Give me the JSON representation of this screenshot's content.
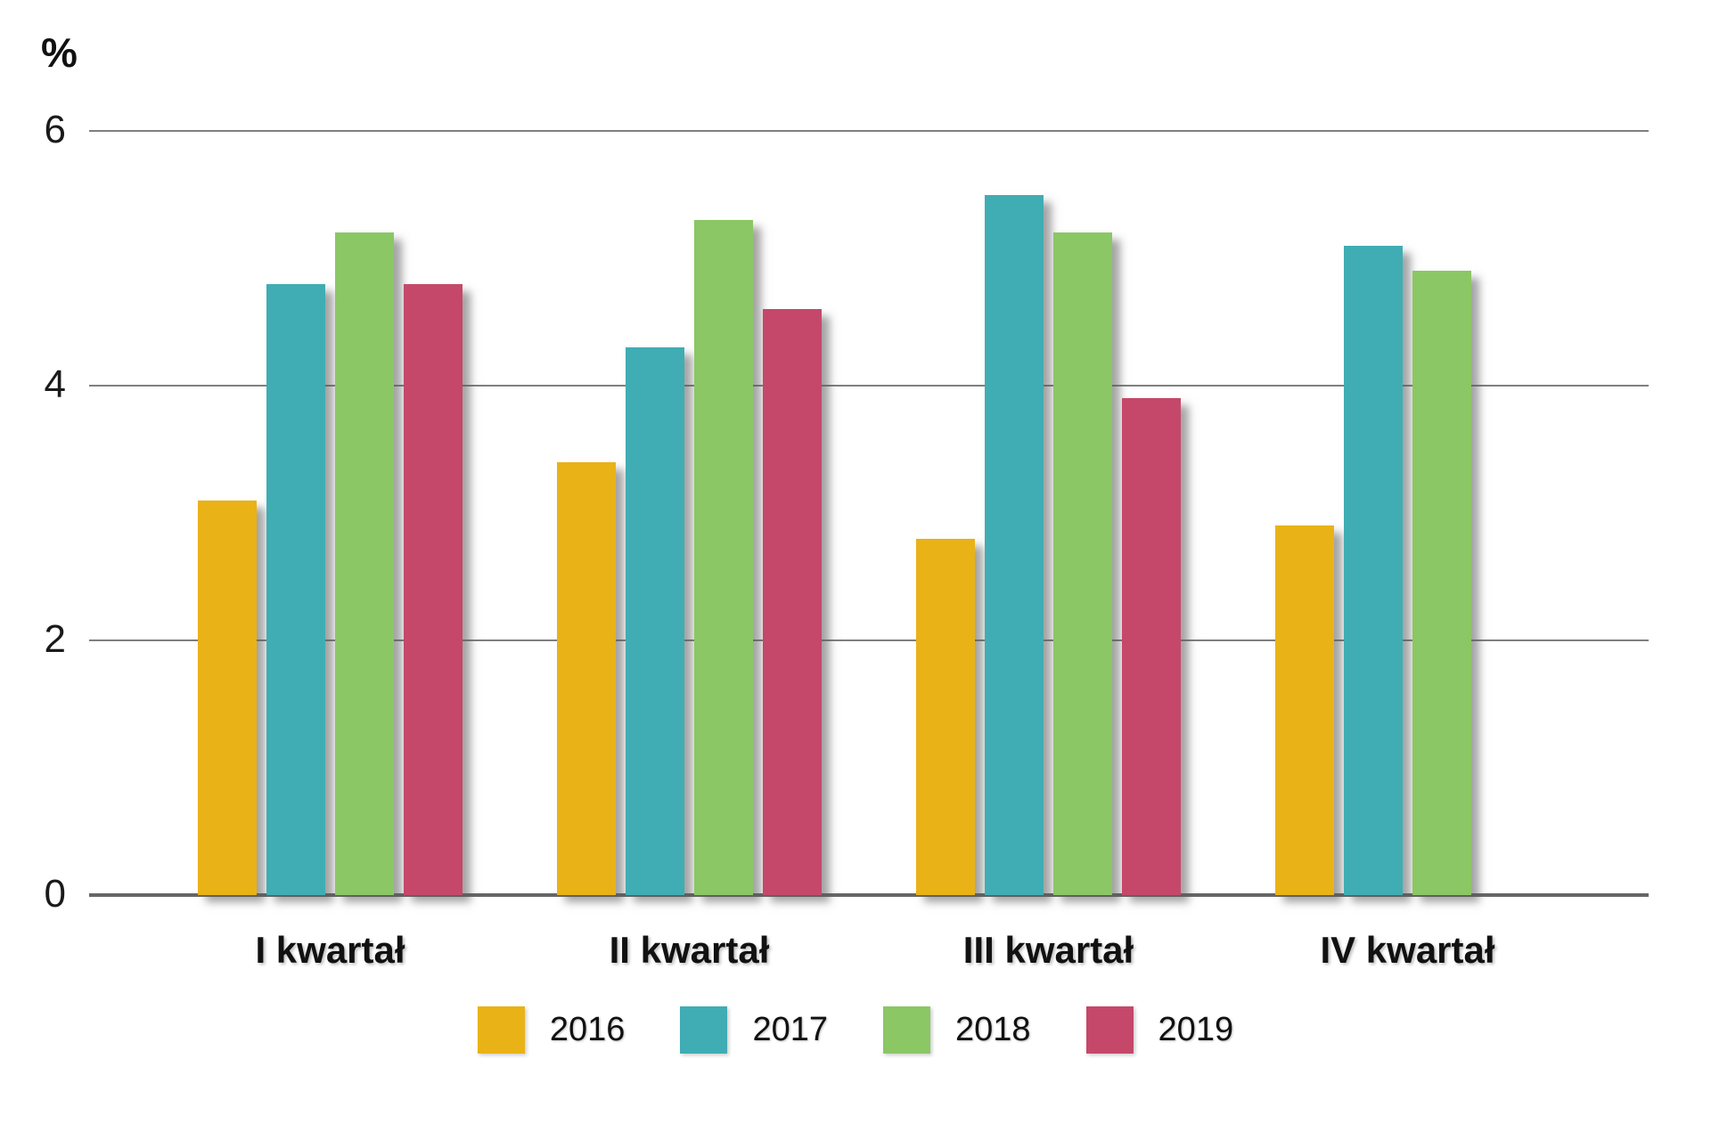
{
  "chart_data": {
    "type": "bar",
    "title": "",
    "ylabel": "%",
    "xlabel": "",
    "ylim": [
      0,
      6
    ],
    "y_ticks": [
      6,
      4,
      2,
      0
    ],
    "grid": "horizontal",
    "legend_position": "bottom-center",
    "categories": [
      "I kwartał",
      "II kwartał",
      "III kwartał",
      "IV kwartał"
    ],
    "series": [
      {
        "name": "2016",
        "color": "#E9B217",
        "values": [
          3.1,
          3.4,
          2.8,
          2.9
        ]
      },
      {
        "name": "2017",
        "color": "#3FADB3",
        "values": [
          4.8,
          4.3,
          5.5,
          5.1
        ]
      },
      {
        "name": "2018",
        "color": "#8BC764",
        "values": [
          5.2,
          5.3,
          5.2,
          4.9
        ]
      },
      {
        "name": "2019",
        "color": "#C5486A",
        "values": [
          4.8,
          4.6,
          3.9,
          null
        ]
      }
    ],
    "colors": {
      "gridline": "#7f7f7f",
      "axis_line": "#666666",
      "text": "#111111",
      "background": "#ffffff"
    }
  }
}
